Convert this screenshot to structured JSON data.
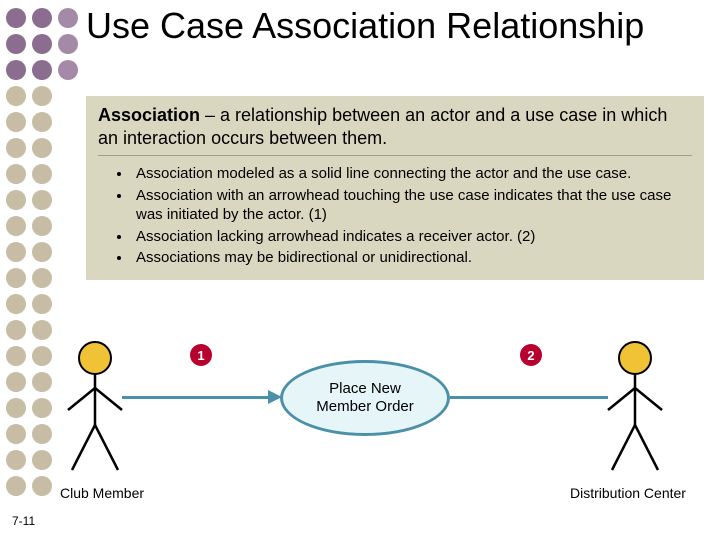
{
  "title": "Use Case Association Relationship",
  "definition_term": "Association",
  "definition_text": " – a relationship between an actor and a use case in which an interaction occurs between them.",
  "bullets": [
    "Association modeled as a solid line connecting the actor and the use case.",
    "Association with an arrowhead touching the use case indicates that the use case was initiated by the actor. (1)",
    "Association lacking arrowhead indicates a receiver actor. (2)",
    "Associations may be bidirectional or unidirectional."
  ],
  "diagram": {
    "actor_left": "Club Member",
    "actor_right": "Distribution Center",
    "use_case": "Place New\nMember Order",
    "badge1": "1",
    "badge2": "2",
    "ellipse_border": "#4a90a8",
    "ellipse_fill": "#e6f5f8",
    "line_color": "#4a90a8",
    "badge_color": "#b8002e",
    "actor_head_fill": "#f0c236",
    "actor_head_stroke": "#000000",
    "actor_body_stroke": "#000000"
  },
  "dots": {
    "colors_top": [
      "#8a6d8f",
      "#a58aa8"
    ],
    "color_mid": "#c7bca4",
    "rows": 19
  },
  "beige_bg": "#d9d7bf",
  "page_number": "7-11",
  "title_fontsize": 36,
  "body_fontsize": 18,
  "bullet_fontsize": 15
}
